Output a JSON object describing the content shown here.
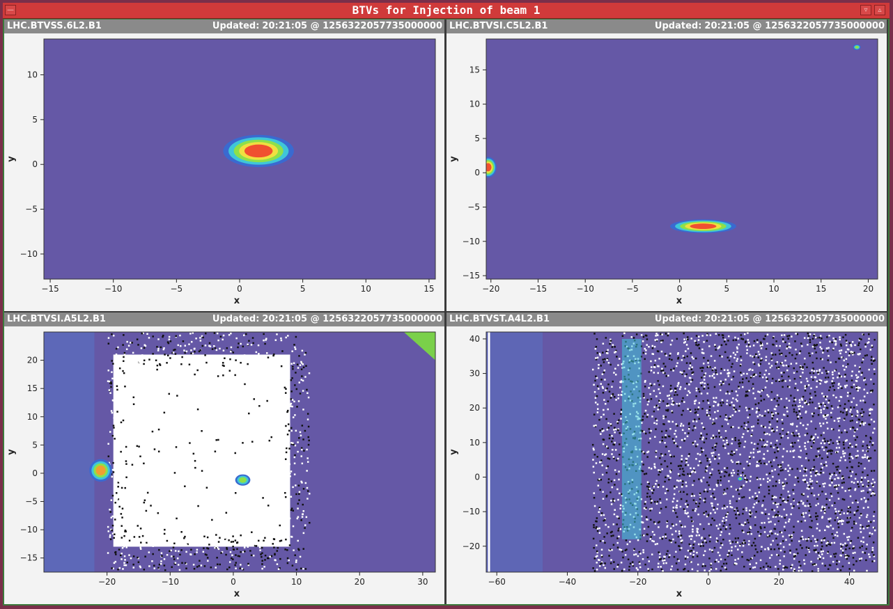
{
  "window": {
    "title": "BTVs for Injection of beam 1",
    "left_buttons": [
      "window-menu-button"
    ],
    "right_buttons": [
      "minimize-button",
      "close-button"
    ]
  },
  "colors": {
    "title_bar": "#d03a3a",
    "panel_header": "#8a8a8a",
    "background_plot": "#6558a6",
    "beam_core": "#f05030"
  },
  "panels": [
    {
      "name": "LHC.BTVSS.6L2.B1",
      "updated_label": "Updated:",
      "updated_value": "20:21:05 @ 1256322057735000000",
      "chart_data": {
        "type": "heatmap",
        "xlabel": "x",
        "ylabel": "y",
        "xlim": [
          -15.5,
          15.5
        ],
        "ylim": [
          -12.8,
          14
        ],
        "xticks": [
          -15,
          -10,
          -5,
          0,
          5,
          10,
          15
        ],
        "yticks": [
          -10,
          -5,
          0,
          5,
          10
        ],
        "spots": [
          {
            "x": 1.5,
            "y": 1.5,
            "rx": 2.8,
            "ry": 1.8,
            "intensity": "saturated"
          }
        ]
      }
    },
    {
      "name": "LHC.BTVSI.C5L2.B1",
      "updated_label": "Updated:",
      "updated_value": "20:21:05 @ 1256322057735000000",
      "chart_data": {
        "type": "heatmap",
        "xlabel": "x",
        "ylabel": "y",
        "xlim": [
          -20.5,
          21
        ],
        "ylim": [
          -15.5,
          19.5
        ],
        "xticks": [
          -20,
          -15,
          -10,
          -5,
          0,
          5,
          10,
          15,
          20
        ],
        "yticks": [
          -15,
          -10,
          -5,
          0,
          5,
          10,
          15
        ],
        "spots": [
          {
            "x": 2.5,
            "y": -7.8,
            "rx": 3.5,
            "ry": 1.0,
            "intensity": "saturated"
          },
          {
            "x": -20.3,
            "y": 0.8,
            "rx": 0.9,
            "ry": 1.5,
            "intensity": "saturated"
          },
          {
            "x": 18.8,
            "y": 18.3,
            "rx": 0.4,
            "ry": 0.4,
            "intensity": "medium"
          }
        ]
      }
    },
    {
      "name": "LHC.BTVSI.A5L2.B1",
      "updated_label": "Updated:",
      "updated_value": "20:21:05 @ 1256322057735000000",
      "chart_data": {
        "type": "heatmap",
        "xlabel": "x",
        "ylabel": "y",
        "xlim": [
          -30,
          32
        ],
        "ylim": [
          -17.5,
          25
        ],
        "xticks": [
          -20,
          -10,
          0,
          10,
          20,
          30
        ],
        "yticks": [
          -15,
          -10,
          -5,
          0,
          5,
          10,
          15,
          20
        ],
        "spots": [
          {
            "x": -21,
            "y": 0.5,
            "rx": 1.8,
            "ry": 2.0,
            "intensity": "high"
          },
          {
            "x": 1.5,
            "y": -1.2,
            "rx": 1.2,
            "ry": 1.0,
            "intensity": "medium"
          }
        ]
      }
    },
    {
      "name": "LHC.BTVST.A4L2.B1",
      "updated_label": "Updated:",
      "updated_value": "20:21:05 @ 1256322057735000000",
      "chart_data": {
        "type": "heatmap",
        "xlabel": "x",
        "ylabel": "y",
        "xlim": [
          -63,
          48
        ],
        "ylim": [
          -27.5,
          42
        ],
        "xticks": [
          -60,
          -40,
          -20,
          0,
          20,
          40
        ],
        "yticks": [
          -20,
          -10,
          0,
          10,
          20,
          30,
          40
        ],
        "spots": [
          {
            "x": 9,
            "y": -0.5,
            "rx": 0.8,
            "ry": 0.6,
            "intensity": "medium"
          }
        ]
      }
    }
  ]
}
